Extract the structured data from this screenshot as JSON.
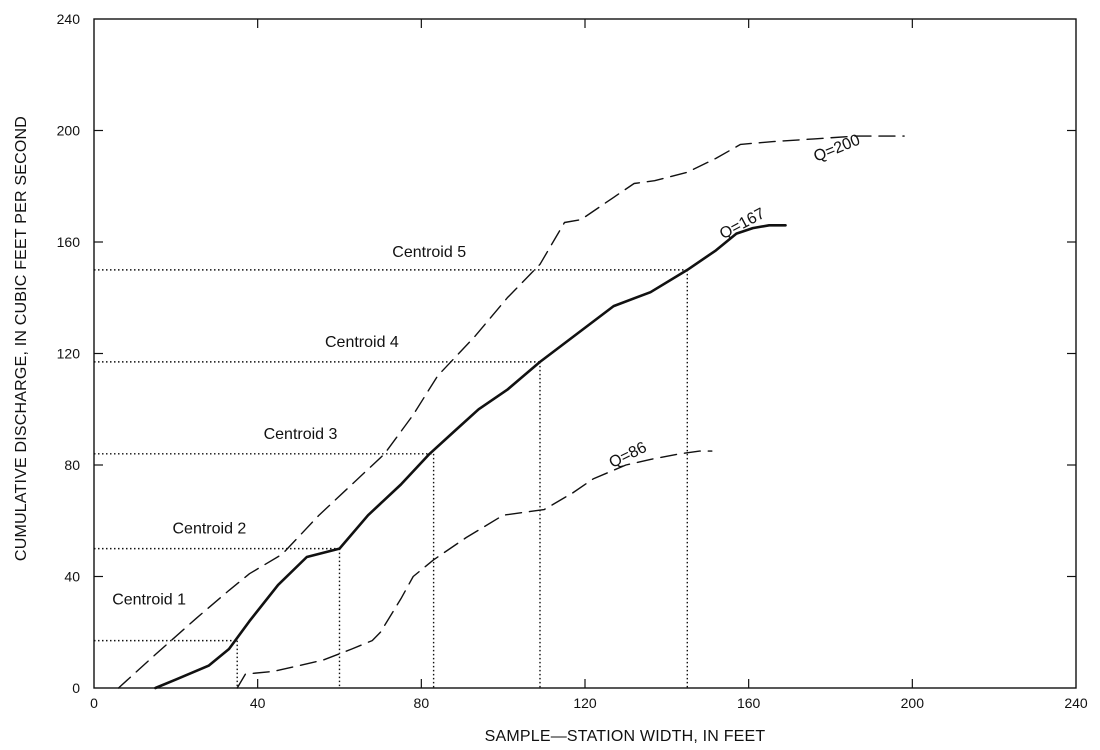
{
  "chart_data": {
    "type": "line",
    "xlabel": "SAMPLE—STATION WIDTH, IN FEET",
    "ylabel": "CUMULATIVE DISCHARGE, IN CUBIC FEET PER SECOND",
    "xlim": [
      0,
      240
    ],
    "ylim": [
      0,
      240
    ],
    "x_ticks": [
      0,
      40,
      80,
      120,
      160,
      200,
      240
    ],
    "y_ticks": [
      0,
      40,
      80,
      120,
      160,
      200,
      240
    ],
    "grid": false,
    "series": [
      {
        "name": "Q=200",
        "style": "dashed",
        "color": "#111111",
        "x": [
          6,
          15,
          25,
          33,
          38,
          46,
          55,
          63,
          71,
          78,
          84,
          93,
          101,
          109,
          115,
          119,
          127,
          132,
          137,
          145,
          152,
          158,
          166,
          176,
          186,
          198
        ],
        "y": [
          0,
          12,
          25,
          35,
          41,
          48,
          62,
          73,
          84,
          98,
          112,
          126,
          140,
          152,
          167,
          168,
          176,
          181,
          182,
          185,
          190,
          195,
          196,
          197,
          198,
          198
        ]
      },
      {
        "name": "Q=167",
        "style": "solid",
        "color": "#111111",
        "x": [
          15,
          20,
          28,
          33,
          38,
          45,
          52,
          60,
          67,
          75,
          82,
          88,
          94,
          101,
          109,
          118,
          127,
          136,
          145,
          152,
          157,
          161,
          165,
          169
        ],
        "y": [
          0,
          3,
          8,
          14,
          24,
          37,
          47,
          50,
          62,
          73,
          84,
          92,
          100,
          107,
          117,
          127,
          137,
          142,
          150,
          157,
          163,
          165,
          166,
          166
        ]
      },
      {
        "name": "Q=86",
        "style": "dashed",
        "color": "#111111",
        "x": [
          35,
          37,
          44,
          50,
          56,
          63,
          68,
          70,
          75,
          78,
          83,
          91,
          100,
          110,
          117,
          122,
          130,
          136,
          143,
          148,
          151
        ],
        "y": [
          0,
          5,
          6,
          8,
          10,
          14,
          17,
          20,
          32,
          40,
          46,
          54,
          62,
          64,
          70,
          75,
          80,
          82,
          84,
          85,
          85
        ]
      }
    ],
    "centroids": [
      {
        "label": "Centroid 1",
        "x": 35,
        "y": 17
      },
      {
        "label": "Centroid 2",
        "x": 60,
        "y": 50
      },
      {
        "label": "Centroid 3",
        "x": 83,
        "y": 84
      },
      {
        "label": "Centroid 4",
        "x": 109,
        "y": 117
      },
      {
        "label": "Centroid 5",
        "x": 145,
        "y": 150
      }
    ],
    "curve_labels": [
      {
        "text": "Q=200",
        "x": 182,
        "y": 192,
        "angle": -22
      },
      {
        "text": "Q=167",
        "x": 159,
        "y": 165,
        "angle": -28
      },
      {
        "text": "Q=86",
        "x": 131,
        "y": 82,
        "angle": -26
      }
    ]
  }
}
